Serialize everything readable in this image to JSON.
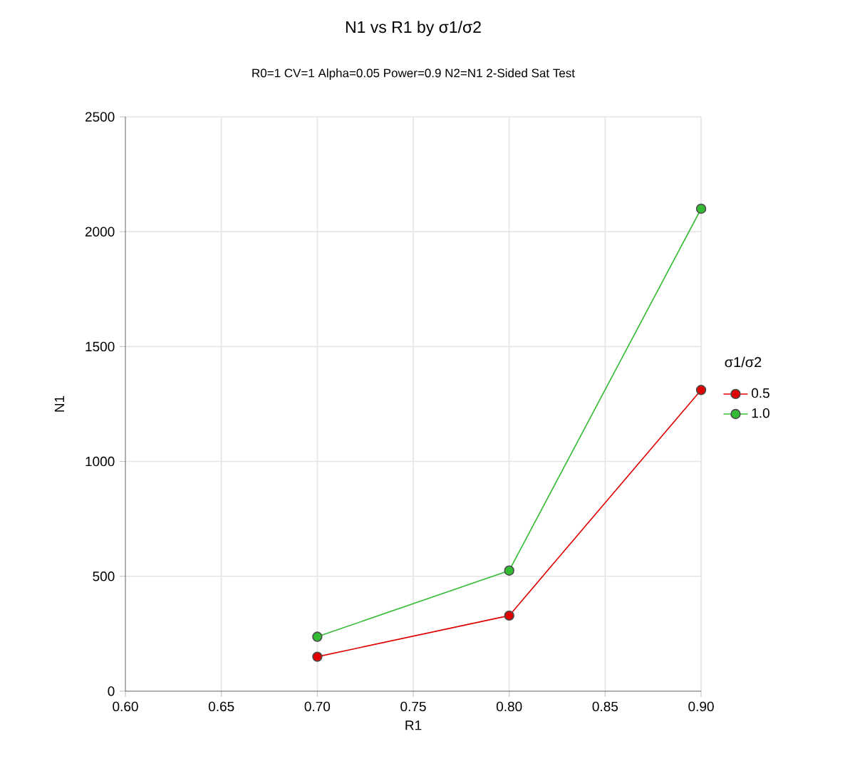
{
  "chart_data": {
    "type": "line",
    "title": "N1 vs R1 by σ1/σ2",
    "subtitle": "R0=1 CV=1 Alpha=0.05 Power=0.9 N2=N1 2-Sided Sat Test",
    "xlabel": "R1",
    "ylabel": "N1",
    "legend_title": "σ1/σ2",
    "x": [
      0.7,
      0.8,
      0.9
    ],
    "series": [
      {
        "name": "0.5",
        "color": "#e00000",
        "values": [
          150,
          329,
          1311
        ]
      },
      {
        "name": "1.0",
        "color": "#33bb33",
        "values": [
          237,
          525,
          2100
        ]
      }
    ],
    "xlim": [
      0.6,
      0.9
    ],
    "xticks": [
      {
        "value": 0.6,
        "label": "0.60"
      },
      {
        "value": 0.65,
        "label": "0.65"
      },
      {
        "value": 0.7,
        "label": "0.70"
      },
      {
        "value": 0.75,
        "label": "0.75"
      },
      {
        "value": 0.8,
        "label": "0.80"
      },
      {
        "value": 0.85,
        "label": "0.85"
      },
      {
        "value": 0.9,
        "label": "0.90"
      }
    ],
    "ylim": [
      0,
      2500
    ],
    "yticks": [
      0,
      500,
      1000,
      1500,
      2000,
      2500
    ],
    "grid": true,
    "legend": "right",
    "marker": "circle",
    "line_style": "solid"
  }
}
